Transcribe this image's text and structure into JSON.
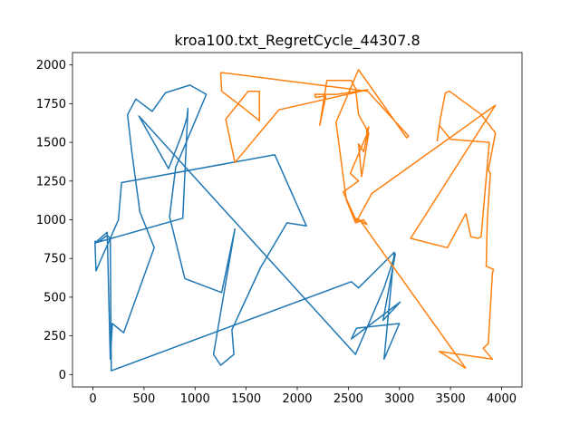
{
  "chart_data": {
    "type": "line",
    "title": "kroa100.txt_RegretCycle_44307.8",
    "xlabel": "",
    "ylabel": "",
    "xlim": [
      -200,
      4200
    ],
    "ylim": [
      -80,
      2080
    ],
    "xticks": [
      0,
      500,
      1000,
      1500,
      2000,
      2500,
      3000,
      3500,
      4000
    ],
    "yticks": [
      0,
      250,
      500,
      750,
      1000,
      1250,
      1500,
      1750,
      2000
    ],
    "grid": false,
    "series": [
      {
        "color": "#1f77b4",
        "x": [
          3010,
          2530,
          2580,
          3000,
          2850,
          2950,
          2600,
          2530,
          180,
          170,
          140,
          60,
          40,
          20,
          30,
          250,
          280,
          1780,
          2090,
          1900,
          1640,
          1360,
          1380,
          1250,
          1180,
          1390,
          1260,
          900,
          750,
          810,
          1110,
          950,
          710,
          580,
          420,
          340,
          340,
          380,
          460,
          600,
          300,
          190,
          170,
          140,
          20,
          880,
          930,
          920,
          870,
          740,
          450,
          2570,
          2850,
          2960,
          2840,
          3010
        ],
        "y": [
          470,
          230,
          300,
          330,
          100,
          790,
          560,
          600,
          25,
          880,
          900,
          860,
          860,
          860,
          670,
          1000,
          1240,
          1420,
          960,
          980,
          690,
          290,
          130,
          60,
          130,
          940,
          530,
          620,
          1020,
          1340,
          1810,
          1870,
          1820,
          1700,
          1780,
          1680,
          1670,
          1440,
          1050,
          820,
          270,
          330,
          100,
          920,
          850,
          1010,
          1720,
          1660,
          1550,
          1330,
          1670,
          130,
          560,
          780,
          350,
          470
        ]
      },
      {
        "color": "#ff7f0e",
        "x": [
          3650,
          3390,
          3910,
          3820,
          3870,
          3910,
          3920,
          3850,
          3860,
          3890,
          3870,
          3940,
          3800,
          3490,
          3450,
          3400,
          3370,
          3390,
          3500,
          3880,
          3800,
          3770,
          3700,
          3650,
          3470,
          3110,
          3940,
          2730,
          2580,
          2450,
          2600,
          2520,
          2680,
          2680,
          2700,
          2650,
          2600,
          2630,
          2700,
          2600,
          2570,
          2530,
          2290,
          2220,
          2280,
          2180,
          2170,
          2390,
          2690,
          1820,
          1390,
          1390,
          1300,
          1520,
          1630,
          1630,
          1460,
          1260,
          1260,
          1250,
          1270,
          2690,
          3090,
          3070,
          2600,
          2380,
          2480,
          2570,
          2650,
          2680,
          2560,
          2610,
          3650
        ],
        "y": [
          40,
          150,
          100,
          170,
          200,
          650,
          680,
          700,
          1000,
          1300,
          1320,
          1560,
          1680,
          1830,
          1820,
          1650,
          1510,
          1610,
          1520,
          1500,
          890,
          880,
          890,
          1040,
          820,
          880,
          1740,
          1170,
          990,
          1180,
          1250,
          1300,
          1550,
          1580,
          1600,
          1440,
          1490,
          1280,
          1560,
          1680,
          1850,
          1900,
          1900,
          1610,
          1800,
          1790,
          1810,
          1810,
          1840,
          1710,
          1370,
          1370,
          1650,
          1830,
          1830,
          1640,
          1730,
          1830,
          1830,
          1950,
          1950,
          1830,
          1540,
          1530,
          1970,
          1630,
          1130,
          980,
          1000,
          970,
          1010,
          1000,
          40
        ]
      }
    ]
  }
}
